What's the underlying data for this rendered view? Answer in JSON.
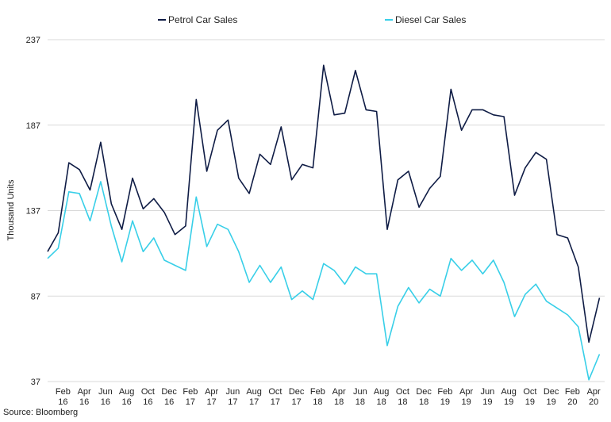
{
  "chart_data": {
    "type": "line",
    "ylabel": "Thousand Units",
    "ylim": [
      37,
      237
    ],
    "yticks": [
      37,
      87,
      137,
      187,
      237
    ],
    "grid": "horizontal",
    "legend_position": "top",
    "source": "Source: Bloomberg",
    "x": [
      "2016-01",
      "2016-02",
      "2016-03",
      "2016-04",
      "2016-05",
      "2016-06",
      "2016-07",
      "2016-08",
      "2016-09",
      "2016-10",
      "2016-11",
      "2016-12",
      "2017-01",
      "2017-02",
      "2017-03",
      "2017-04",
      "2017-05",
      "2017-06",
      "2017-07",
      "2017-08",
      "2017-09",
      "2017-10",
      "2017-11",
      "2017-12",
      "2018-01",
      "2018-02",
      "2018-03",
      "2018-04",
      "2018-05",
      "2018-06",
      "2018-07",
      "2018-08",
      "2018-09",
      "2018-10",
      "2018-11",
      "2018-12",
      "2019-01",
      "2019-02",
      "2019-03",
      "2019-04",
      "2019-05",
      "2019-06",
      "2019-07",
      "2019-08",
      "2019-09",
      "2019-10",
      "2019-11",
      "2019-12",
      "2020-01",
      "2020-02",
      "2020-03",
      "2020-04",
      "2020-05"
    ],
    "xticks": [
      {
        "month": "Feb",
        "year": "16"
      },
      {
        "month": "Apr",
        "year": "16"
      },
      {
        "month": "Jun",
        "year": "16"
      },
      {
        "month": "Aug",
        "year": "16"
      },
      {
        "month": "Oct",
        "year": "16"
      },
      {
        "month": "Dec",
        "year": "16"
      },
      {
        "month": "Feb",
        "year": "17"
      },
      {
        "month": "Apr",
        "year": "17"
      },
      {
        "month": "Jun",
        "year": "17"
      },
      {
        "month": "Aug",
        "year": "17"
      },
      {
        "month": "Oct",
        "year": "17"
      },
      {
        "month": "Dec",
        "year": "17"
      },
      {
        "month": "Feb",
        "year": "18"
      },
      {
        "month": "Apr",
        "year": "18"
      },
      {
        "month": "Jun",
        "year": "18"
      },
      {
        "month": "Aug",
        "year": "18"
      },
      {
        "month": "Oct",
        "year": "18"
      },
      {
        "month": "Dec",
        "year": "18"
      },
      {
        "month": "Feb",
        "year": "19"
      },
      {
        "month": "Apr",
        "year": "19"
      },
      {
        "month": "Jun",
        "year": "19"
      },
      {
        "month": "Aug",
        "year": "19"
      },
      {
        "month": "Oct",
        "year": "19"
      },
      {
        "month": "Dec",
        "year": "19"
      },
      {
        "month": "Feb",
        "year": "20"
      },
      {
        "month": "Apr",
        "year": "20"
      }
    ],
    "series": [
      {
        "name": "Petrol Car Sales",
        "color": "#0f1c45",
        "values": [
          113,
          124,
          165,
          161,
          149,
          177,
          141,
          126,
          156,
          138,
          144,
          136,
          123,
          128,
          202,
          160,
          184,
          190,
          156,
          147,
          170,
          164,
          186,
          155,
          164,
          162,
          222,
          193,
          194,
          219,
          196,
          195,
          126,
          155,
          160,
          139,
          150,
          157,
          208,
          184,
          196,
          196,
          193,
          192,
          146,
          162,
          171,
          167,
          123,
          121,
          104,
          60,
          86
        ]
      },
      {
        "name": "Diesel Car Sales",
        "color": "#38cfe8",
        "values": [
          109,
          115,
          148,
          147,
          131,
          154,
          128,
          107,
          131,
          113,
          121,
          108,
          105,
          102,
          145,
          116,
          129,
          126,
          113,
          95,
          105,
          95,
          104,
          85,
          90,
          85,
          106,
          102,
          94,
          104,
          100,
          100,
          58,
          81,
          92,
          83,
          91,
          87,
          109,
          102,
          108,
          100,
          108,
          95,
          75,
          88,
          94,
          84,
          80,
          76,
          69,
          38,
          53
        ]
      }
    ]
  }
}
